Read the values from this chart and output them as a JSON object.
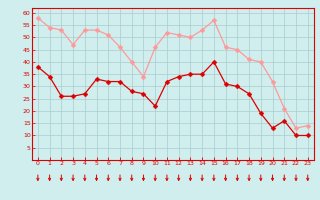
{
  "hours": [
    0,
    1,
    2,
    3,
    4,
    5,
    6,
    7,
    8,
    9,
    10,
    11,
    12,
    13,
    14,
    15,
    16,
    17,
    18,
    19,
    20,
    21,
    22,
    23
  ],
  "wind_avg": [
    38,
    34,
    26,
    26,
    27,
    33,
    32,
    32,
    28,
    27,
    22,
    32,
    34,
    35,
    35,
    40,
    31,
    30,
    27,
    19,
    13,
    16,
    10,
    10
  ],
  "wind_gust": [
    58,
    54,
    53,
    47,
    53,
    53,
    51,
    46,
    40,
    34,
    46,
    52,
    51,
    50,
    53,
    57,
    46,
    45,
    41,
    40,
    32,
    21,
    13,
    14
  ],
  "bg_color": "#d0eeee",
  "grid_color": "#aacccc",
  "line_avg_color": "#dd0000",
  "line_gust_color": "#ff9999",
  "marker_size": 2.5,
  "xlabel_color": "#dd0000",
  "tick_color": "#dd0000",
  "arrow_color": "#dd0000",
  "ylim": [
    0,
    62
  ],
  "yticks": [
    5,
    10,
    15,
    20,
    25,
    30,
    35,
    40,
    45,
    50,
    55,
    60
  ],
  "spine_color": "#dd0000"
}
